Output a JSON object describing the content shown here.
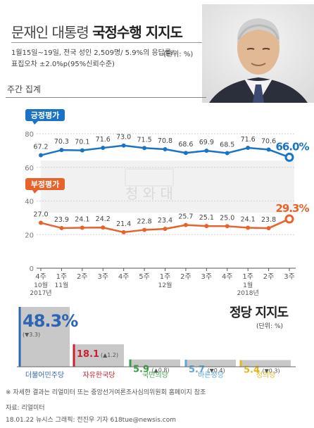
{
  "header": {
    "title_light": "문재인 대통령",
    "title_bold": "국정수행 지지도",
    "survey_line1": "1월15일~19일, 전국 성인 2,509명/ 5.9%의 응답률/",
    "survey_line2": "표집오차 ±2.0%p(95%신뢰수준)",
    "unit": "(단위: %)"
  },
  "line_chart": {
    "subtitle": "주간 집계",
    "x_labels": [
      {
        "week": "4주",
        "month": "10월",
        "year": "2017년"
      },
      {
        "week": "1주",
        "month": "11월",
        "year": ""
      },
      {
        "week": "2주",
        "month": "",
        "year": ""
      },
      {
        "week": "3주",
        "month": "",
        "year": ""
      },
      {
        "week": "4주",
        "month": "",
        "year": ""
      },
      {
        "week": "5주",
        "month": "",
        "year": ""
      },
      {
        "week": "1주",
        "month": "12월",
        "year": ""
      },
      {
        "week": "2주",
        "month": "",
        "year": ""
      },
      {
        "week": "3주",
        "month": "",
        "year": ""
      },
      {
        "week": "4주",
        "month": "",
        "year": ""
      },
      {
        "week": "1주",
        "month": "1월",
        "year": "2018년"
      },
      {
        "week": "2주",
        "month": "",
        "year": ""
      },
      {
        "week": "3주",
        "month": "",
        "year": ""
      }
    ],
    "y_ticks": [
      "80",
      "60",
      "40",
      "20",
      "0"
    ],
    "positive_label": "긍정평가",
    "negative_label": "부정평가",
    "positive_value_labels": [
      "67.2",
      "70.3",
      "70.1",
      "71.6",
      "73.0",
      "71.5",
      "70.8",
      "68.6",
      "69.9",
      "68.5",
      "71.6",
      "70.6",
      "66.0%"
    ],
    "negative_value_labels": [
      "27.0",
      "23.9",
      "24.1",
      "24.2",
      "21.4",
      "22.8",
      "23.4",
      "25.7",
      "25.1",
      "25.0",
      "24.1",
      "23.8",
      "29.3%"
    ],
    "watermark": "청 와 대"
  },
  "chart_data": [
    {
      "type": "line",
      "x": [
        "2017-10 4주",
        "11월 1주",
        "2주",
        "3주",
        "4주",
        "5주",
        "12월 1주",
        "2주",
        "3주",
        "4주",
        "2018-01 1주",
        "2주",
        "3주"
      ],
      "series": [
        {
          "name": "긍정평가",
          "values": [
            67.2,
            70.3,
            70.1,
            71.6,
            73.0,
            71.5,
            70.8,
            68.6,
            69.9,
            68.5,
            71.6,
            70.6,
            66.0
          ]
        },
        {
          "name": "부정평가",
          "values": [
            27.0,
            23.9,
            24.1,
            24.2,
            21.4,
            22.8,
            23.4,
            25.7,
            25.1,
            25.0,
            24.1,
            23.8,
            29.3
          ]
        }
      ],
      "ylim": [
        0,
        80
      ],
      "xlabel": "",
      "ylabel": ""
    },
    {
      "type": "bar",
      "title": "정당 지지도",
      "categories": [
        "더불어민주당",
        "자유한국당",
        "국민의당",
        "바른정당",
        "정의당"
      ],
      "values": [
        48.3,
        18.1,
        5.9,
        5.7,
        5.4
      ],
      "change_labels": [
        "(▼3.3)",
        "(▲1.2)",
        "(▲0.8)",
        "(▼0.4)",
        "(▼0.3)"
      ],
      "value_labels": [
        "48.3%",
        "18.1",
        "5.9",
        "5.7",
        "5.4"
      ],
      "colors": [
        "#2c65b3",
        "#cf1f2e",
        "#3a9d48",
        "#5ba6dc",
        "#e3b71b"
      ],
      "unit": "(단위: %)"
    }
  ],
  "colors": {
    "positive": "#1a73c4",
    "negative": "#e8632b",
    "bar_bg": "#c8c8c8",
    "band": "#f1f1f1"
  },
  "footer": {
    "note": "※ 자세한 결과는 리얼미터 또는 중앙선거여론조사심의위원회 홈페이지 참조",
    "source": "자료: 리얼미터",
    "credit": "18.01.22 뉴시스 그래픽: 전진우 기자 618tue@newsis.com"
  }
}
